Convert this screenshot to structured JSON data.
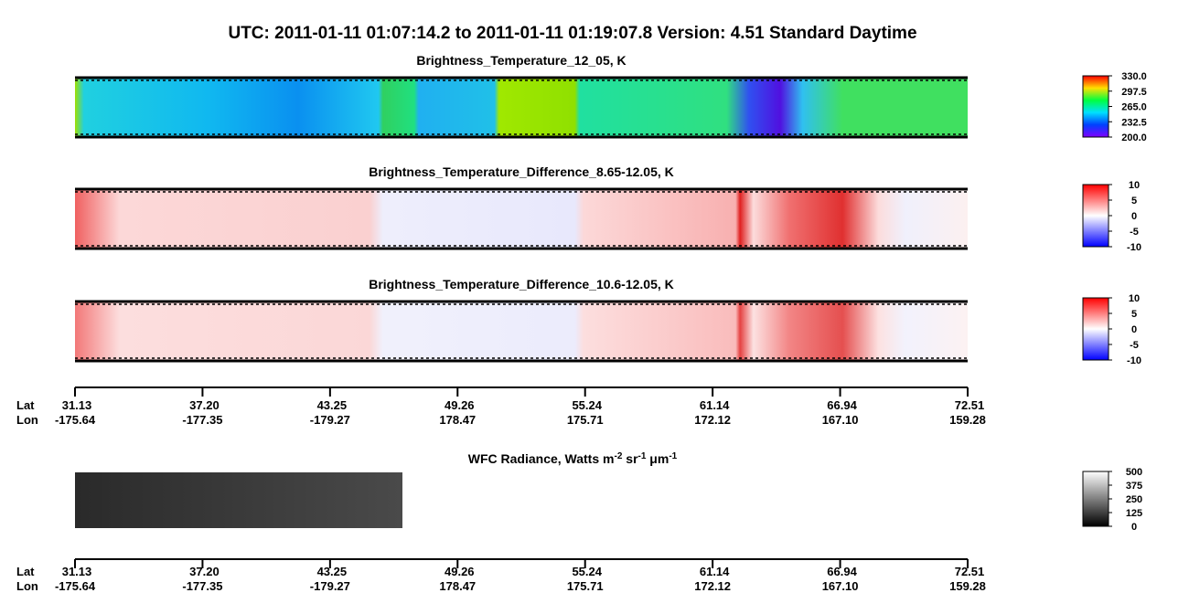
{
  "header": {
    "title": "UTC:  2011-01-11   01:07:14.2  to  2011-01-11   01:19:07.8    Version: 4.51  Standard Daytime"
  },
  "panels": [
    {
      "title": "Brightness_Temperature_12_05, K",
      "colorbar": [
        "330.0",
        "297.5",
        "265.0",
        "232.5",
        "200.0"
      ]
    },
    {
      "title": "Brightness_Temperature_Difference_8.65-12.05, K",
      "colorbar": [
        "10",
        "5",
        "0",
        "-5",
        "-10"
      ]
    },
    {
      "title": "Brightness_Temperature_Difference_10.6-12.05, K",
      "colorbar": [
        "10",
        "5",
        "0",
        "-5",
        "-10"
      ]
    }
  ],
  "wfc": {
    "title": [
      "WFC Radiance, Watts m",
      "-2",
      " sr",
      "-1",
      " μm",
      "-1"
    ],
    "colorbar": [
      "500",
      "375",
      "250",
      "125",
      "0"
    ]
  },
  "axis": {
    "lat_label": "Lat",
    "lon_label": "Lon",
    "lat": [
      "31.13",
      "37.20",
      "43.25",
      "49.26",
      "55.24",
      "61.14",
      "66.94",
      "72.51"
    ],
    "lon": [
      "-175.64",
      "-177.35",
      "-179.27",
      "178.47",
      "175.71",
      "172.12",
      "167.10",
      "159.28"
    ]
  }
}
